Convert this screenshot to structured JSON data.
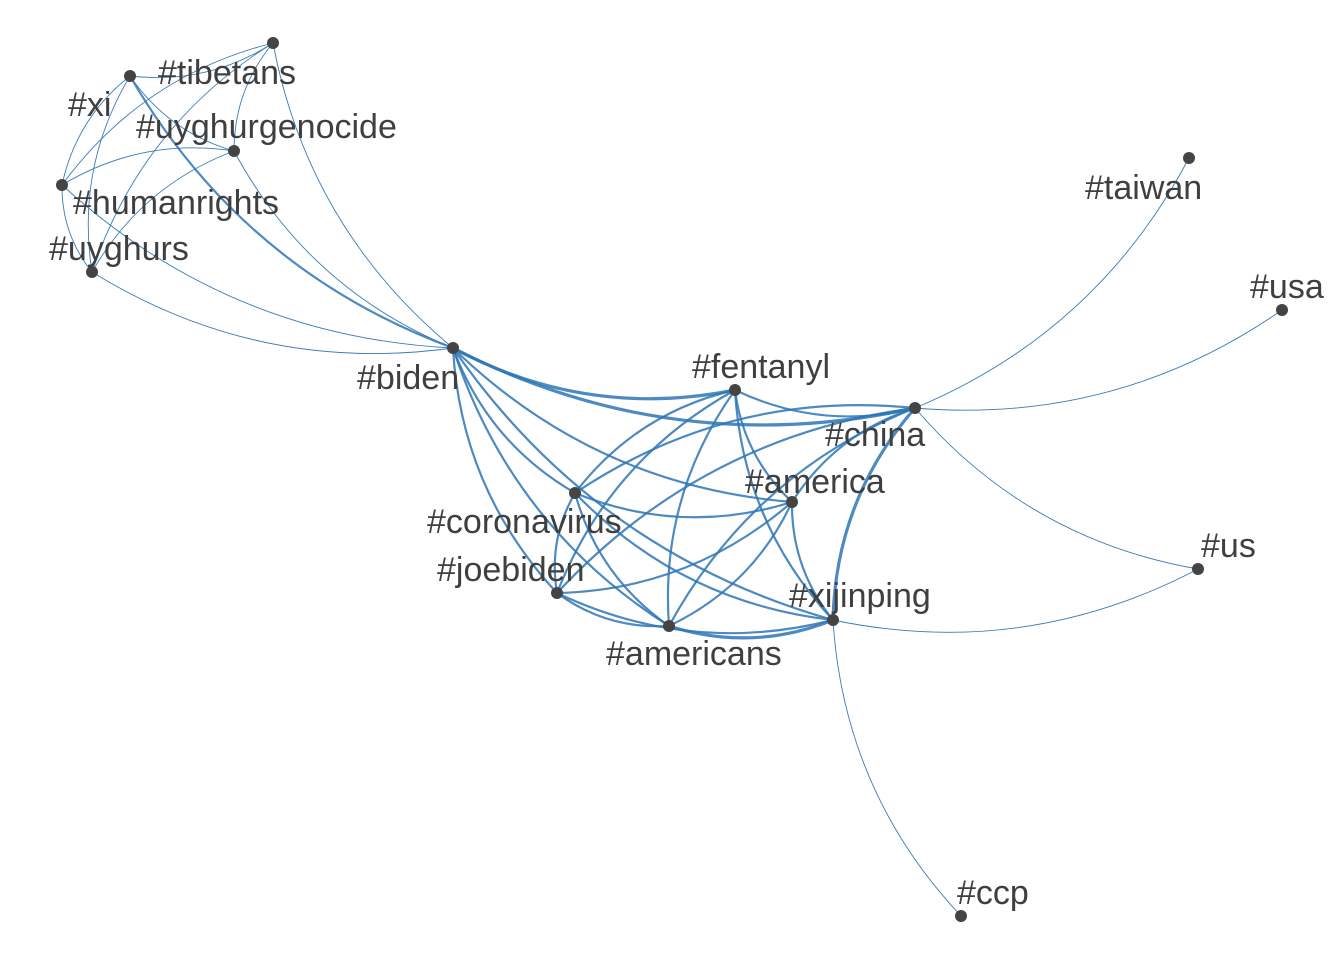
{
  "diagram": {
    "type": "hashtag-cooccurrence-network",
    "edge_color": "#2e75b6",
    "node_color": "#444444",
    "label_color": "#3f3f3f"
  },
  "nodes": [
    {
      "id": "biden",
      "label": "#biden"
    },
    {
      "id": "xi",
      "label": "#xi"
    },
    {
      "id": "tibetans",
      "label": "#tibetans"
    },
    {
      "id": "tibet_dot",
      "label": ""
    },
    {
      "id": "uyghurgenocide",
      "label": "#uyghurgenocide"
    },
    {
      "id": "humanrights",
      "label": "#humanrights"
    },
    {
      "id": "uyghurs",
      "label": "#uyghurs"
    },
    {
      "id": "taiwan",
      "label": "#taiwan"
    },
    {
      "id": "usa",
      "label": "#usa"
    },
    {
      "id": "fentanyl",
      "label": "#fentanyl"
    },
    {
      "id": "china",
      "label": "#china"
    },
    {
      "id": "america",
      "label": "#america"
    },
    {
      "id": "coronavirus",
      "label": "#coronavirus"
    },
    {
      "id": "joebiden",
      "label": "#joebiden"
    },
    {
      "id": "americans",
      "label": "#americans"
    },
    {
      "id": "xijinping",
      "label": "#xijinping"
    },
    {
      "id": "us",
      "label": "#us"
    },
    {
      "id": "ccp",
      "label": "#ccp"
    }
  ],
  "edges": [
    {
      "source": "xi",
      "target": "tibet_dot",
      "weight": 1
    },
    {
      "source": "xi",
      "target": "humanrights",
      "weight": 1
    },
    {
      "source": "xi",
      "target": "uyghurs",
      "weight": 1
    },
    {
      "source": "xi",
      "target": "uyghurgenocide",
      "weight": 1
    },
    {
      "source": "xi",
      "target": "biden",
      "weight": 2
    },
    {
      "source": "tibet_dot",
      "target": "humanrights",
      "weight": 1
    },
    {
      "source": "tibet_dot",
      "target": "uyghurs",
      "weight": 1
    },
    {
      "source": "tibet_dot",
      "target": "uyghurgenocide",
      "weight": 1
    },
    {
      "source": "tibet_dot",
      "target": "biden",
      "weight": 1
    },
    {
      "source": "uyghurgenocide",
      "target": "humanrights",
      "weight": 1
    },
    {
      "source": "uyghurgenocide",
      "target": "uyghurs",
      "weight": 1
    },
    {
      "source": "uyghurgenocide",
      "target": "biden",
      "weight": 1
    },
    {
      "source": "humanrights",
      "target": "uyghurs",
      "weight": 1
    },
    {
      "source": "humanrights",
      "target": "biden",
      "weight": 1
    },
    {
      "source": "uyghurs",
      "target": "biden",
      "weight": 1
    },
    {
      "source": "biden",
      "target": "fentanyl",
      "weight": 3
    },
    {
      "source": "biden",
      "target": "china",
      "weight": 3
    },
    {
      "source": "biden",
      "target": "america",
      "weight": 2
    },
    {
      "source": "biden",
      "target": "coronavirus",
      "weight": 2
    },
    {
      "source": "biden",
      "target": "joebiden",
      "weight": 2
    },
    {
      "source": "biden",
      "target": "americans",
      "weight": 2
    },
    {
      "source": "biden",
      "target": "xijinping",
      "weight": 2
    },
    {
      "source": "fentanyl",
      "target": "china",
      "weight": 2
    },
    {
      "source": "fentanyl",
      "target": "coronavirus",
      "weight": 2
    },
    {
      "source": "fentanyl",
      "target": "joebiden",
      "weight": 2
    },
    {
      "source": "fentanyl",
      "target": "americans",
      "weight": 2
    },
    {
      "source": "fentanyl",
      "target": "xijinping",
      "weight": 2
    },
    {
      "source": "fentanyl",
      "target": "america",
      "weight": 2
    },
    {
      "source": "china",
      "target": "coronavirus",
      "weight": 2
    },
    {
      "source": "china",
      "target": "joebiden",
      "weight": 2
    },
    {
      "source": "china",
      "target": "americans",
      "weight": 2
    },
    {
      "source": "china",
      "target": "xijinping",
      "weight": 3
    },
    {
      "source": "china",
      "target": "america",
      "weight": 2
    },
    {
      "source": "china",
      "target": "taiwan",
      "weight": 1
    },
    {
      "source": "china",
      "target": "usa",
      "weight": 1
    },
    {
      "source": "china",
      "target": "us",
      "weight": 1
    },
    {
      "source": "coronavirus",
      "target": "america",
      "weight": 2
    },
    {
      "source": "coronavirus",
      "target": "joebiden",
      "weight": 2
    },
    {
      "source": "coronavirus",
      "target": "americans",
      "weight": 2
    },
    {
      "source": "coronavirus",
      "target": "xijinping",
      "weight": 2
    },
    {
      "source": "joebiden",
      "target": "americans",
      "weight": 2
    },
    {
      "source": "joebiden",
      "target": "xijinping",
      "weight": 2
    },
    {
      "source": "joebiden",
      "target": "america",
      "weight": 2
    },
    {
      "source": "americans",
      "target": "xijinping",
      "weight": 3
    },
    {
      "source": "americans",
      "target": "america",
      "weight": 2
    },
    {
      "source": "america",
      "target": "xijinping",
      "weight": 2
    },
    {
      "source": "xijinping",
      "target": "us",
      "weight": 1
    },
    {
      "source": "xijinping",
      "target": "ccp",
      "weight": 1
    }
  ]
}
